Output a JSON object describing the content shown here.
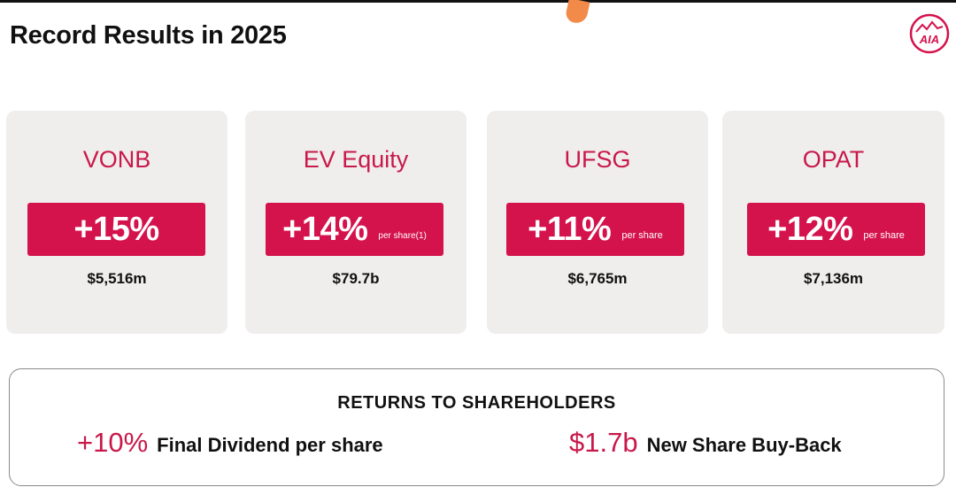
{
  "header": {
    "title": "Record Results in 2025"
  },
  "logo": {
    "text": "AIA",
    "icon": "aia-logo-icon",
    "color": "#d4124c"
  },
  "cards": [
    {
      "title": "VONB",
      "value": "+15%",
      "sub": "",
      "amount": "$5,516m"
    },
    {
      "title": "EV Equity",
      "value": "+14%",
      "sub": "per share(1)",
      "amount": "$79.7b"
    },
    {
      "title": "UFSG",
      "value": "+11%",
      "sub": "per share",
      "amount": "$6,765m"
    },
    {
      "title": "OPAT",
      "value": "+12%",
      "sub": "per share",
      "amount": "$7,136m"
    }
  ],
  "returns": {
    "title": "RETURNS TO SHAREHOLDERS",
    "items": [
      {
        "value": "+10%",
        "label": "Final Dividend per share"
      },
      {
        "value": "$1.7b",
        "label": "New Share Buy-Back"
      }
    ]
  },
  "colors": {
    "accent": "#d4124c",
    "card_bg": "#f0eeed",
    "title_red": "#c8194a"
  }
}
